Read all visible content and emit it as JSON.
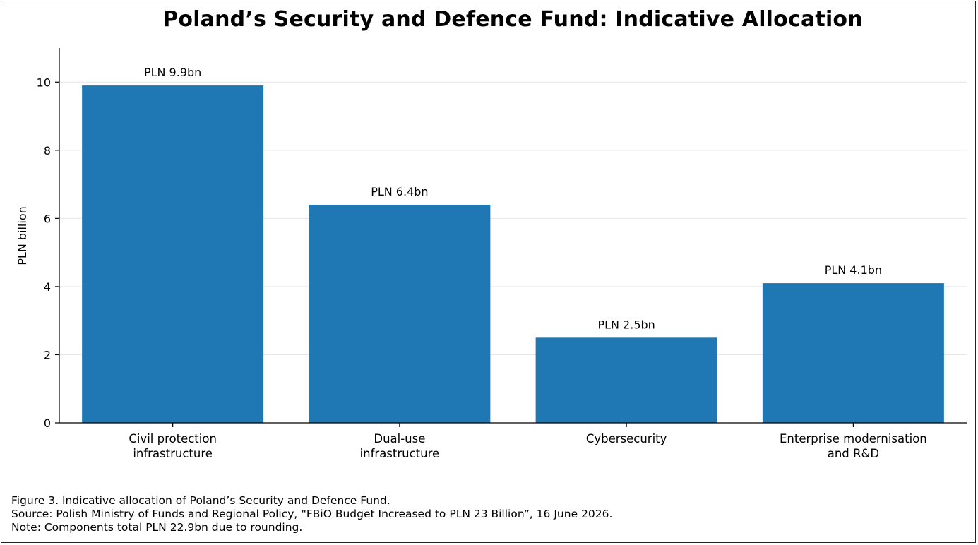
{
  "chart_data": {
    "type": "bar",
    "title": "Poland’s Security and Defence Fund: Indicative Allocation",
    "xlabel": "",
    "ylabel": "PLN billion",
    "ylim": [
      0,
      11
    ],
    "yticks": [
      0,
      2,
      4,
      6,
      8,
      10
    ],
    "grid": "horizontal",
    "categories": [
      [
        "Civil protection",
        "infrastructure"
      ],
      [
        "Dual-use",
        "infrastructure"
      ],
      [
        "Cybersecurity"
      ],
      [
        "Enterprise modernisation",
        "and R&D"
      ]
    ],
    "values": [
      9.9,
      6.4,
      2.5,
      4.1
    ],
    "data_labels": [
      "PLN 9.9bn",
      "PLN 6.4bn",
      "PLN 2.5bn",
      "PLN 4.1bn"
    ],
    "bar_color": "#1f77b4",
    "grid_color": "#e6e6e6"
  },
  "caption": {
    "figure": "Figure 3. Indicative allocation of Poland’s Security and Defence Fund.",
    "source": "Source: Polish Ministry of Funds and Regional Policy, “FBiO Budget Increased to PLN 23 Billion”, 16 June 2026.",
    "note": "Note: Components total PLN 22.9bn due to rounding."
  }
}
